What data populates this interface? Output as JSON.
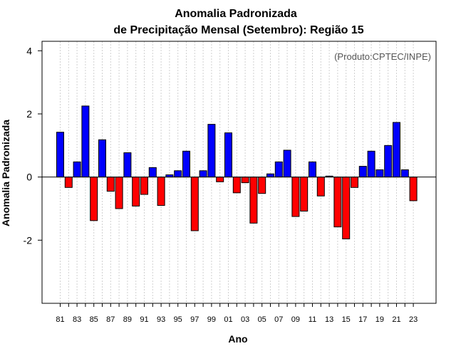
{
  "chart_data": {
    "type": "bar",
    "title": "Anomalia Padronizada",
    "subtitle": "de Precipitação Mensal (Setembro): Região 15",
    "xlabel": "Ano",
    "ylabel": "Anomalia Padronizada",
    "credit": "(Produto:CPTEC/INPE)",
    "ylim": [
      -4,
      4.3
    ],
    "yticks": [
      4,
      2,
      0,
      -2
    ],
    "positive_color": "#0000ff",
    "negative_color": "#ff0000",
    "categories": [
      "81",
      "82",
      "83",
      "84",
      "85",
      "86",
      "87",
      "88",
      "89",
      "90",
      "91",
      "92",
      "93",
      "94",
      "95",
      "96",
      "97",
      "98",
      "99",
      "00",
      "01",
      "02",
      "03",
      "04",
      "05",
      "06",
      "07",
      "08",
      "09",
      "10",
      "11",
      "12",
      "13",
      "14",
      "15",
      "16",
      "17",
      "18",
      "19",
      "20",
      "21",
      "22",
      "23"
    ],
    "tick_labels": [
      "81",
      "83",
      "85",
      "87",
      "89",
      "91",
      "93",
      "95",
      "97",
      "99",
      "01",
      "03",
      "05",
      "07",
      "09",
      "11",
      "13",
      "15",
      "17",
      "19",
      "21",
      "23"
    ],
    "values": [
      1.42,
      -0.33,
      0.48,
      2.25,
      -1.38,
      1.18,
      -0.45,
      -1.0,
      0.77,
      -0.92,
      -0.55,
      0.3,
      -0.9,
      0.07,
      0.2,
      0.82,
      -1.7,
      0.2,
      1.67,
      -0.15,
      1.4,
      -0.5,
      -0.18,
      -1.46,
      -0.52,
      0.1,
      0.48,
      0.85,
      -1.25,
      -1.08,
      0.48,
      -0.6,
      0.03,
      -1.58,
      -1.96,
      -0.33,
      0.34,
      0.82,
      0.23,
      1.0,
      1.73,
      0.23,
      -0.75
    ]
  }
}
